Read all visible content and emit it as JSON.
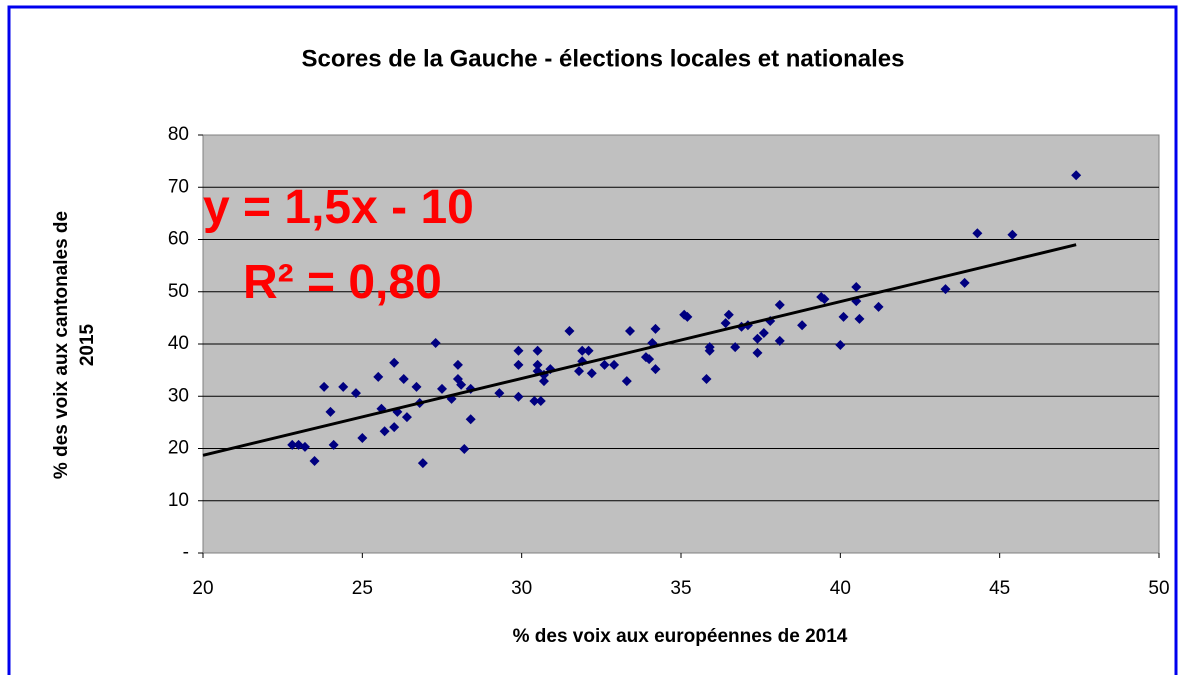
{
  "chart_data": {
    "type": "scatter",
    "title": "Scores de la Gauche - élections locales et nationales",
    "x_label": "% des voix aux européennes de 2014",
    "y_label": [
      "% des voix aux cantonales de",
      "2015"
    ],
    "annotations": [
      "y = 1,5x - 10",
      "R² = 0,80"
    ],
    "xlim": [
      20,
      50
    ],
    "ylim": [
      0,
      80
    ],
    "xticks": [
      20,
      25,
      30,
      35,
      40,
      45,
      50
    ],
    "yticks": [
      {
        "value": 0,
        "label": "-"
      },
      10,
      20,
      30,
      40,
      50,
      60,
      70,
      80
    ],
    "grid": true,
    "color": "#000080",
    "trendline": {
      "color": "#000000",
      "x": [
        20,
        47.4
      ],
      "y": [
        18.7,
        59
      ]
    },
    "x": [
      22.8,
      23.0,
      23.2,
      23.5,
      23.8,
      24.0,
      24.1,
      24.4,
      24.8,
      25.0,
      25.5,
      25.6,
      25.7,
      26.0,
      26.0,
      26.1,
      26.3,
      26.4,
      26.7,
      26.8,
      26.9,
      27.3,
      27.5,
      27.8,
      28.0,
      28.0,
      28.1,
      28.2,
      28.4,
      28.4,
      29.3,
      29.9,
      29.9,
      29.9,
      30.4,
      30.5,
      30.5,
      30.5,
      30.6,
      30.7,
      30.7,
      30.9,
      31.5,
      31.8,
      31.9,
      31.9,
      32.1,
      32.2,
      32.6,
      32.9,
      33.3,
      33.4,
      33.9,
      34.0,
      34.1,
      34.2,
      34.2,
      35.1,
      35.2,
      35.8,
      35.9,
      35.9,
      36.4,
      36.5,
      36.7,
      36.9,
      37.1,
      37.4,
      37.4,
      37.6,
      37.8,
      38.1,
      38.1,
      38.8,
      39.4,
      39.5,
      40.0,
      40.1,
      40.5,
      40.5,
      40.6,
      41.2,
      43.3,
      43.9,
      44.3,
      45.4,
      47.4
    ],
    "values": [
      20.7,
      20.7,
      20.3,
      17.6,
      31.8,
      27.0,
      20.7,
      31.8,
      30.6,
      22.0,
      33.7,
      27.6,
      23.3,
      36.4,
      24.1,
      27.0,
      33.3,
      26.0,
      31.8,
      28.7,
      17.2,
      40.2,
      31.4,
      29.5,
      36.0,
      33.3,
      32.2,
      19.9,
      31.4,
      25.6,
      30.6,
      38.7,
      36.0,
      29.9,
      29.1,
      36.0,
      38.7,
      34.8,
      29.1,
      32.9,
      34.1,
      35.2,
      42.5,
      34.8,
      38.7,
      36.7,
      38.7,
      34.4,
      36.0,
      36.0,
      32.9,
      42.5,
      37.5,
      37.1,
      40.2,
      35.2,
      42.9,
      45.6,
      45.2,
      33.3,
      38.7,
      39.4,
      44.0,
      45.6,
      39.4,
      43.3,
      43.6,
      41.0,
      38.3,
      42.1,
      44.4,
      40.6,
      47.5,
      43.6,
      49.0,
      48.6,
      39.8,
      45.2,
      50.9,
      48.2,
      44.8,
      47.1,
      50.5,
      51.7,
      61.2,
      60.9,
      72.3
    ]
  }
}
